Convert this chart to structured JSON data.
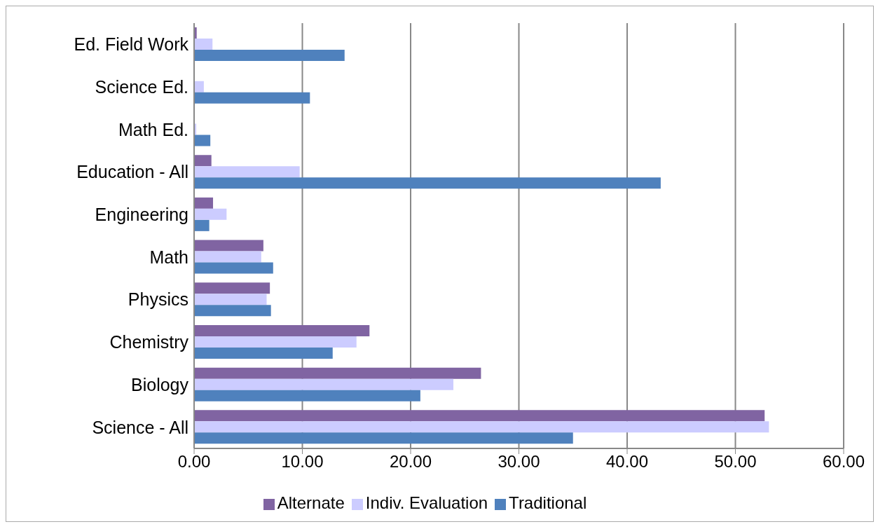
{
  "chart_data": {
    "type": "bar",
    "orientation": "horizontal",
    "categories": [
      "Ed. Field Work",
      "Science Ed.",
      "Math Ed.",
      "Education - All",
      "Engineering",
      "Math",
      "Physics",
      "Chemistry",
      "Biology",
      "Science - All"
    ],
    "series": [
      {
        "name": "Alternate",
        "color": "#8064a2",
        "values": [
          0.24,
          null,
          null,
          1.6,
          1.75,
          6.4,
          7.0,
          16.2,
          26.5,
          52.7
        ]
      },
      {
        "name": "Indiv. Evaluation",
        "color": "#ccccff",
        "values": [
          1.7,
          0.9,
          0.2,
          9.75,
          3.0,
          6.2,
          6.7,
          15.0,
          23.95,
          53.1
        ]
      },
      {
        "name": "Traditional",
        "color": "#4f81bd",
        "values": [
          13.9,
          10.7,
          1.5,
          43.1,
          1.4,
          7.3,
          7.1,
          12.8,
          20.9,
          35.0
        ]
      }
    ],
    "xlim": [
      0,
      60
    ],
    "xticks": [
      {
        "value": 0,
        "label": "0.00"
      },
      {
        "value": 10,
        "label": "10.00"
      },
      {
        "value": 20,
        "label": "20.00"
      },
      {
        "value": 30,
        "label": "30.00"
      },
      {
        "value": 40,
        "label": "40.00"
      },
      {
        "value": 50,
        "label": "50.00"
      },
      {
        "value": 60,
        "label": "60.00"
      }
    ],
    "grid": "x",
    "legend": "bottom"
  }
}
